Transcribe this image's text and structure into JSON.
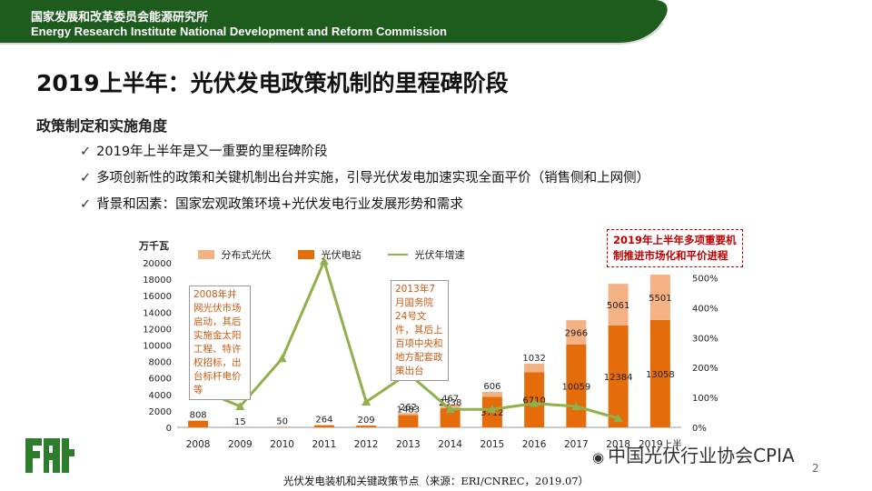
{
  "header": {
    "org_cn": "国家发展和改革委员会能源研究所",
    "org_en": "Energy Research Institute National Development and Reform Commission"
  },
  "title": "2019上半年：光伏发电政策机制的里程碑阶段",
  "subtitle": "政策制定和实施角度",
  "bullets": [
    "2019年上半年是又一重要的里程碑阶段",
    "多项创新性的政策和关键机制出台并实施，引导光伏发电加速实现全面平价（销售侧和上网侧）",
    "背景和因素：国家宏观政策环境+光伏发电行业发展形势和需求"
  ],
  "chart_data": {
    "type": "bar",
    "unit_label": "万千瓦",
    "categories": [
      "2008",
      "2009",
      "2010",
      "2011",
      "2012",
      "2013",
      "2014",
      "2015",
      "2016",
      "2017",
      "2018",
      "2019上半"
    ],
    "series": [
      {
        "name": "分布式光伏",
        "type": "bar",
        "stack": "a",
        "color": "#f4b183",
        "values": [
          null,
          null,
          null,
          null,
          null,
          262,
          467,
          606,
          1032,
          2966,
          5061,
          5501
        ]
      },
      {
        "name": "光伏电站",
        "type": "bar",
        "stack": "a",
        "color": "#e46c0a",
        "values": [
          808,
          15,
          50,
          264,
          209,
          1483,
          2338,
          3712,
          6710,
          10059,
          12384,
          13058
        ]
      },
      {
        "name": "光伏年增速",
        "type": "line",
        "color": "#8fb04a",
        "axis": "right",
        "values": [
          130,
          70,
          230,
          555,
          85,
          180,
          60,
          60,
          80,
          70,
          30,
          null
        ]
      }
    ],
    "ylim": [
      0,
      20000
    ],
    "yticks": [
      0,
      2000,
      4000,
      6000,
      8000,
      10000,
      12000,
      14000,
      16000,
      18000,
      20000
    ],
    "y2ticks": [
      "0%",
      "100%",
      "200%",
      "300%",
      "400%",
      "500%"
    ],
    "y2lim": [
      0,
      550
    ],
    "grid": false,
    "legend_position": "top"
  },
  "annotations": {
    "a2008": "2008年并网光伏市场启动，其后实施金太阳工程、特许权招标，出台标杆电价等",
    "a2013": "2013年7月国务院24号文件，其后上百项中央和地方配套政策出台",
    "a2019": "2019年上半年多项重要机制推进市场化和平价进程"
  },
  "caption": "光伏发电装机和关键政策节点（来源：ERI/CNREC，2019.07）",
  "watermark": "中国光伏行业协会CPIA",
  "page_number": "2",
  "colors": {
    "header_green": "#1e5c1e",
    "accent_green": "#8fb04a",
    "orange": "#e46c0a",
    "light_orange": "#f4b183"
  }
}
